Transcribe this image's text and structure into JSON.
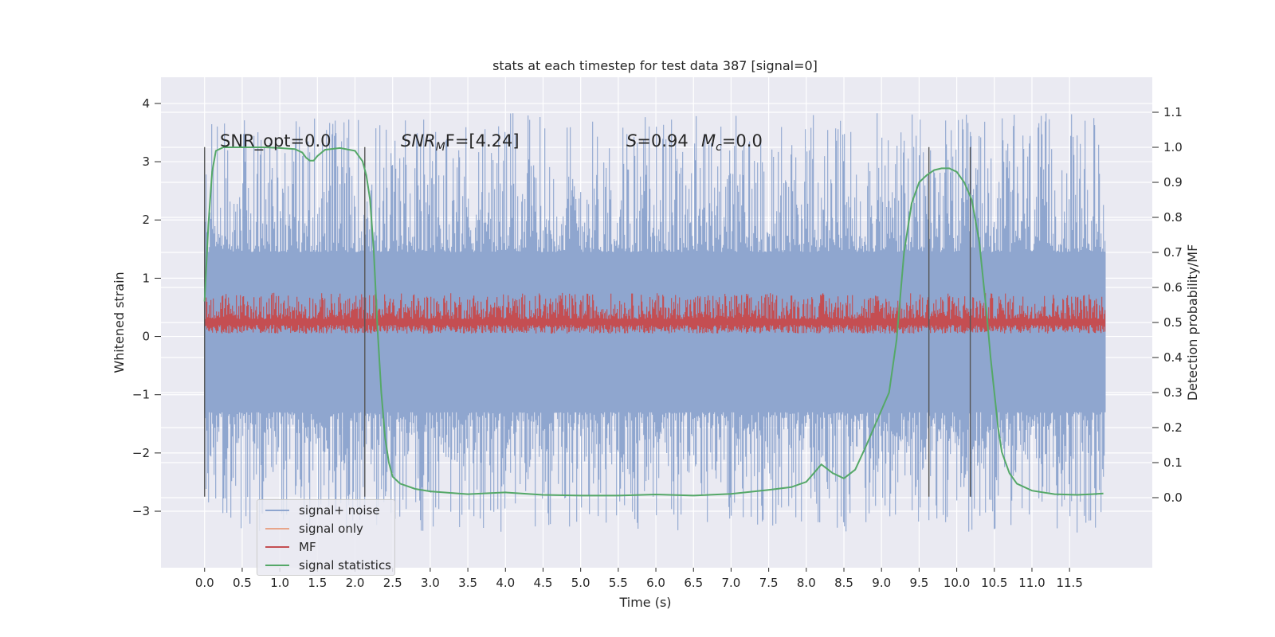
{
  "chart_data": {
    "type": "line",
    "title": "stats at each timestep for test data 387 [signal=0]",
    "xlabel": "Time (s)",
    "ylabel": "Whitened strain",
    "ylabel_right": "Detection probability/MF",
    "xlim": [
      -0.58,
      12.6
    ],
    "ylim": [
      -3.97,
      4.45
    ],
    "ylim_right": [
      -0.2,
      1.2
    ],
    "x_ticks": [
      "0.0",
      "0.5",
      "1.0",
      "1.5",
      "2.0",
      "2.5",
      "3.0",
      "3.5",
      "4.0",
      "4.5",
      "5.0",
      "5.5",
      "6.0",
      "6.5",
      "7.0",
      "7.5",
      "8.0",
      "8.5",
      "9.0",
      "9.5",
      "10.0",
      "10.5",
      "11.0",
      "11.5"
    ],
    "y_ticks": [
      "4",
      "3",
      "2",
      "1",
      "0",
      "−1",
      "−2",
      "−3"
    ],
    "y_ticks_right": [
      "1.1",
      "1.0",
      "0.9",
      "0.8",
      "0.7",
      "0.6",
      "0.5",
      "0.4",
      "0.3",
      "0.2",
      "0.1",
      "0.0"
    ],
    "grid": true,
    "legend_position": "lower-left",
    "annotations": {
      "snr_opt": "SNR_opt=0.0",
      "snr_mf_label": "SNR",
      "snr_mf_sub": "M",
      "snr_mf_rest": "F=[4.24]",
      "s_label": "S",
      "s_value": "=0.94",
      "mc_label": "M",
      "mc_sub": "c",
      "mc_value": "=0.0"
    },
    "vertical_lines_x": [
      0.0,
      2.13,
      9.63,
      10.18
    ],
    "vertical_lines_range": [
      -2.75,
      3.25
    ],
    "series": [
      {
        "name": "signal+ noise",
        "color": "#8fa6cf",
        "axis": "left",
        "x_range": [
          0.0,
          11.98
        ],
        "band_inner": [
          -1.3,
          1.45
        ],
        "peak_range": [
          -3.6,
          4.1
        ]
      },
      {
        "name": "signal only",
        "color": "#e8a58a",
        "axis": "left",
        "values": []
      },
      {
        "name": "MF",
        "color": "#c44e52",
        "axis": "left",
        "x_range": [
          0.0,
          11.98
        ],
        "band": [
          0.05,
          0.75
        ],
        "peak_max": 1.0
      },
      {
        "name": "signal statistics",
        "color": "#55a868",
        "axis": "right",
        "x": [
          0.0,
          0.05,
          0.1,
          0.15,
          0.25,
          0.4,
          0.8,
          1.0,
          1.2,
          1.3,
          1.35,
          1.4,
          1.45,
          1.5,
          1.6,
          1.8,
          2.0,
          2.1,
          2.15,
          2.2,
          2.25,
          2.3,
          2.35,
          2.4,
          2.45,
          2.5,
          2.6,
          2.8,
          3.0,
          3.5,
          4.0,
          4.5,
          5.0,
          5.5,
          6.0,
          6.5,
          7.0,
          7.5,
          7.8,
          8.0,
          8.2,
          8.35,
          8.5,
          8.65,
          8.8,
          9.0,
          9.1,
          9.2,
          9.3,
          9.4,
          9.5,
          9.6,
          9.7,
          9.8,
          9.9,
          10.0,
          10.1,
          10.2,
          10.3,
          10.4,
          10.45,
          10.5,
          10.55,
          10.6,
          10.7,
          10.8,
          11.0,
          11.3,
          11.6,
          11.8,
          11.95
        ],
        "y": [
          0.56,
          0.78,
          0.93,
          0.99,
          1.0,
          1.0,
          1.0,
          0.998,
          0.995,
          0.985,
          0.97,
          0.962,
          0.962,
          0.975,
          0.993,
          0.998,
          0.99,
          0.96,
          0.92,
          0.85,
          0.7,
          0.48,
          0.3,
          0.17,
          0.1,
          0.06,
          0.04,
          0.025,
          0.018,
          0.01,
          0.015,
          0.008,
          0.006,
          0.006,
          0.009,
          0.006,
          0.011,
          0.022,
          0.03,
          0.045,
          0.095,
          0.07,
          0.055,
          0.08,
          0.15,
          0.25,
          0.3,
          0.45,
          0.7,
          0.84,
          0.9,
          0.92,
          0.935,
          0.94,
          0.94,
          0.93,
          0.9,
          0.85,
          0.73,
          0.52,
          0.4,
          0.3,
          0.2,
          0.13,
          0.07,
          0.04,
          0.02,
          0.01,
          0.008,
          0.01,
          0.012
        ]
      }
    ]
  }
}
